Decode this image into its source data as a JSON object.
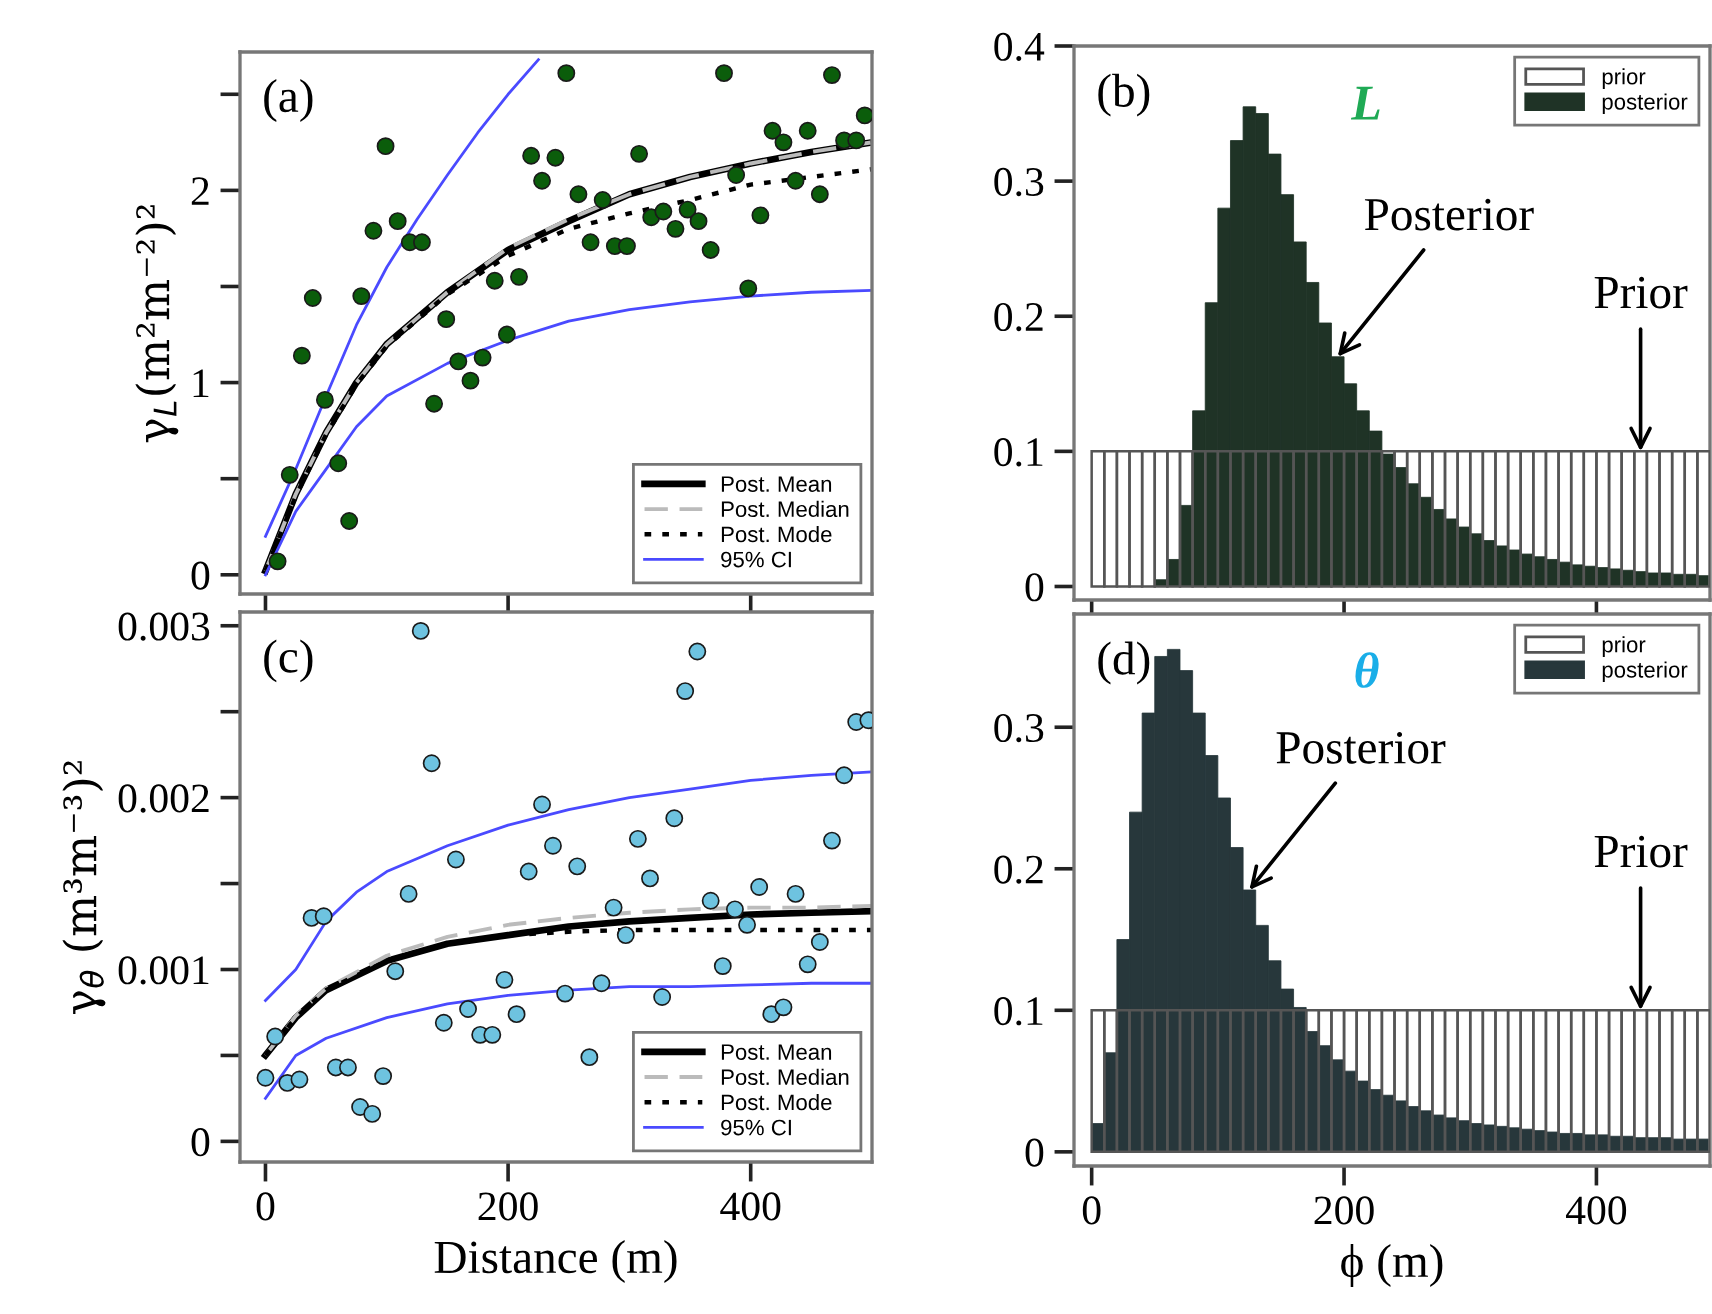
{
  "chart_data": [
    {
      "type": "line",
      "ylabel": "γ$_{L}$(m²m⁻²)²",
      "xlim": [
        -21,
        500
      ],
      "ylim": [
        -0.1,
        2.72
      ],
      "xticks": [
        0,
        200,
        400
      ],
      "yticks": [
        0,
        {
          "value": 0.5,
          "label": null
        },
        1,
        {
          "value": 1.5,
          "label": null
        },
        2,
        {
          "value": 2.5,
          "label": null
        }
      ],
      "tick_labels": "y",
      "legend": "bottom right",
      "annotations": [
        "(a)"
      ],
      "series": [
        {
          "type": "scatter",
          "marker": "circle",
          "color": "#0b5d0b",
          "x": [
            10,
            20,
            30,
            39,
            49,
            60,
            69,
            79,
            89,
            99,
            109,
            119,
            129,
            139,
            149,
            159,
            169,
            179,
            189,
            199,
            209,
            219,
            228,
            239,
            248,
            258,
            268,
            278,
            288,
            298,
            308,
            318,
            328,
            338,
            348,
            357,
            367,
            378,
            388,
            398,
            408,
            418,
            427,
            437,
            447,
            457,
            467,
            477,
            487,
            494
          ],
          "values": [
            0.07,
            0.52,
            1.14,
            1.44,
            0.91,
            0.58,
            0.28,
            1.45,
            1.79,
            2.23,
            1.84,
            1.73,
            1.73,
            0.89,
            1.33,
            1.11,
            1.01,
            1.13,
            1.53,
            1.25,
            1.55,
            2.18,
            2.05,
            2.17,
            2.61,
            1.98,
            1.73,
            1.95,
            1.71,
            1.71,
            2.19,
            1.86,
            1.89,
            1.8,
            1.9,
            1.84,
            1.69,
            2.61,
            2.08,
            1.49,
            1.87,
            2.31,
            2.25,
            2.05,
            2.31,
            1.98,
            2.6,
            2.26,
            2.26,
            2.39
          ]
        },
        {
          "type": "line",
          "name": "Post. Mean",
          "color": "#000000",
          "line_style": "solid",
          "x": [
            0,
            25,
            50,
            75,
            100,
            150,
            200,
            250,
            300,
            350,
            400,
            450,
            500
          ],
          "values": [
            0.02,
            0.42,
            0.74,
            1.0,
            1.2,
            1.47,
            1.69,
            1.84,
            1.98,
            2.07,
            2.14,
            2.2,
            2.25
          ]
        },
        {
          "type": "line",
          "name": "Post. Median",
          "color": "#bbbbbb",
          "line_style": "dashed",
          "x": [
            0,
            25,
            50,
            75,
            100,
            150,
            200,
            250,
            300,
            350,
            400,
            450,
            500
          ],
          "values": [
            0.02,
            0.42,
            0.74,
            1.0,
            1.2,
            1.47,
            1.7,
            1.85,
            1.98,
            2.07,
            2.14,
            2.2,
            2.25
          ]
        },
        {
          "type": "line",
          "name": "Post. Mode",
          "color": "#000000",
          "line_style": "dotted",
          "x": [
            0,
            25,
            50,
            75,
            100,
            150,
            200,
            250,
            300,
            350,
            400,
            450,
            500
          ],
          "values": [
            0.02,
            0.41,
            0.73,
            0.99,
            1.19,
            1.46,
            1.66,
            1.8,
            1.88,
            1.95,
            2.03,
            2.07,
            2.11
          ]
        },
        {
          "type": "line",
          "name": "95% CI",
          "color": "#4a4aff",
          "line_style": "solid",
          "x": [
            0,
            25,
            50,
            75,
            100,
            125,
            150,
            175,
            200,
            225
          ],
          "values": [
            0.2,
            0.55,
            0.93,
            1.3,
            1.6,
            1.85,
            2.08,
            2.3,
            2.5,
            2.68
          ]
        },
        {
          "type": "line",
          "color": "#4a4aff",
          "line_style": "solid",
          "x": [
            0,
            25,
            50,
            75,
            100,
            150,
            200,
            250,
            300,
            350,
            400,
            450,
            500
          ],
          "values": [
            0.0,
            0.33,
            0.55,
            0.77,
            0.93,
            1.1,
            1.22,
            1.32,
            1.38,
            1.42,
            1.45,
            1.47,
            1.48
          ]
        }
      ]
    },
    {
      "type": "histogram",
      "xlim": [
        -14,
        490
      ],
      "ylim": [
        -0.01,
        0.4
      ],
      "xticks": [
        0,
        200,
        400
      ],
      "yticks": [
        0,
        0.1,
        0.2,
        0.3,
        0.4
      ],
      "tick_labels": "y",
      "legend": "top right",
      "annotations": [
        "(b)",
        "L",
        {
          "text": "Posterior",
          "x": 195,
          "y": 0.17
        },
        {
          "text": "Prior",
          "x": 435,
          "y": 0.1
        }
      ],
      "bins": [
        0,
        10,
        20,
        30,
        40,
        50,
        60,
        70,
        80,
        90,
        100,
        110,
        120,
        130,
        140,
        150,
        160,
        170,
        180,
        190,
        200,
        210,
        220,
        230,
        240,
        250,
        260,
        270,
        280,
        290,
        300,
        310,
        320,
        330,
        340,
        350,
        360,
        370,
        380,
        390,
        400,
        410,
        420,
        430,
        440,
        450,
        460,
        470,
        480,
        490
      ],
      "series": [
        {
          "name": "prior",
          "color": "#555555",
          "values": [
            0.1,
            0.1,
            0.1,
            0.1,
            0.1,
            0.1,
            0.1,
            0.1,
            0.1,
            0.1,
            0.1,
            0.1,
            0.1,
            0.1,
            0.1,
            0.1,
            0.1,
            0.1,
            0.1,
            0.1,
            0.1,
            0.1,
            0.1,
            0.1,
            0.1,
            0.1,
            0.1,
            0.1,
            0.1,
            0.1,
            0.1,
            0.1,
            0.1,
            0.1,
            0.1,
            0.1,
            0.1,
            0.1,
            0.1,
            0.1,
            0.1,
            0.1,
            0.1,
            0.1,
            0.1,
            0.1,
            0.1,
            0.1,
            0.1
          ]
        },
        {
          "name": "posterior",
          "color": "#1f3326",
          "values": [
            0,
            0,
            0,
            0,
            0,
            0.005,
            0.02,
            0.06,
            0.13,
            0.21,
            0.28,
            0.33,
            0.355,
            0.35,
            0.32,
            0.29,
            0.255,
            0.225,
            0.195,
            0.17,
            0.15,
            0.13,
            0.115,
            0.098,
            0.088,
            0.076,
            0.066,
            0.057,
            0.05,
            0.044,
            0.039,
            0.034,
            0.03,
            0.027,
            0.024,
            0.022,
            0.02,
            0.018,
            0.016,
            0.015,
            0.014,
            0.013,
            0.012,
            0.011,
            0.01,
            0.01,
            0.009,
            0.009,
            0.008
          ]
        }
      ]
    },
    {
      "type": "line",
      "ylabel": "γ$_{θ}$ (m³m⁻³)²",
      "xlabel": "Distance (m)",
      "xlim": [
        -21,
        500
      ],
      "ylim": [
        -0.00012,
        0.00308
      ],
      "xticks": [
        0,
        200,
        400
      ],
      "yticks": [
        0,
        {
          "value": 0.0005,
          "label": null
        },
        0.001,
        {
          "value": 0.0015,
          "label": null
        },
        0.002,
        {
          "value": 0.0025,
          "label": null
        },
        0.003
      ],
      "legend": "bottom right",
      "annotations": [
        "(c)"
      ],
      "series": [
        {
          "type": "scatter",
          "marker": "circle",
          "color": "#6ec3e0",
          "x": [
            0,
            8,
            18,
            28,
            38,
            48,
            58,
            68,
            78,
            88,
            97,
            107,
            118,
            128,
            137,
            147,
            157,
            167,
            177,
            187,
            197,
            207,
            217,
            228,
            237,
            247,
            257,
            267,
            277,
            287,
            297,
            307,
            317,
            327,
            337,
            346,
            356,
            367,
            377,
            387,
            397,
            407,
            417,
            427,
            437,
            447,
            457,
            467,
            477,
            487,
            497
          ],
          "values": [
            0.00037,
            0.00061,
            0.00034,
            0.00036,
            0.0013,
            0.00131,
            0.00043,
            0.00043,
            0.0002,
            0.00016,
            0.00038,
            0.00099,
            0.00144,
            0.00297,
            0.0022,
            0.00069,
            0.00164,
            0.00077,
            0.00062,
            0.00062,
            0.00094,
            0.00074,
            0.00157,
            0.00196,
            0.00172,
            0.00086,
            0.0016,
            0.00049,
            0.00092,
            0.00136,
            0.0012,
            0.00176,
            0.00153,
            0.00084,
            0.00188,
            0.00262,
            0.00285,
            0.0014,
            0.00102,
            0.00135,
            0.00126,
            0.00148,
            0.00074,
            0.00078,
            0.00144,
            0.00103,
            0.00116,
            0.00175,
            0.00213,
            0.00244,
            0.00245
          ]
        },
        {
          "type": "line",
          "name": "Post. Mean",
          "color": "#000000",
          "line_style": "solid",
          "x": [
            0,
            25,
            50,
            100,
            150,
            200,
            250,
            300,
            350,
            400,
            450,
            500
          ],
          "values": [
            0.0005,
            0.00072,
            0.00088,
            0.00105,
            0.00115,
            0.0012,
            0.00125,
            0.00128,
            0.0013,
            0.00132,
            0.00133,
            0.00134
          ]
        },
        {
          "type": "line",
          "name": "Post. Median",
          "color": "#bbbbbb",
          "line_style": "dashed",
          "x": [
            0,
            25,
            50,
            100,
            150,
            200,
            250,
            300,
            350,
            400,
            450,
            500
          ],
          "values": [
            0.0005,
            0.00073,
            0.00089,
            0.00108,
            0.00119,
            0.00126,
            0.0013,
            0.00133,
            0.00135,
            0.00136,
            0.00136,
            0.00137
          ]
        },
        {
          "type": "line",
          "name": "Post. Mode",
          "color": "#000000",
          "line_style": "dotted",
          "x": [
            0,
            25,
            50,
            100,
            150,
            200,
            250,
            300,
            350,
            400,
            450,
            500
          ],
          "values": [
            0.0005,
            0.00072,
            0.00088,
            0.00105,
            0.00115,
            0.0012,
            0.00122,
            0.00123,
            0.00123,
            0.00123,
            0.00123,
            0.00123
          ]
        },
        {
          "type": "line",
          "name": "95% CI",
          "color": "#4a4aff",
          "line_style": "solid",
          "x": [
            0,
            25,
            50,
            75,
            100,
            150,
            200,
            250,
            300,
            350,
            400,
            450,
            500
          ],
          "values": [
            0.00082,
            0.001,
            0.00128,
            0.00145,
            0.00157,
            0.00172,
            0.00184,
            0.00193,
            0.002,
            0.00205,
            0.0021,
            0.00213,
            0.00215
          ]
        },
        {
          "type": "line",
          "color": "#4a4aff",
          "line_style": "solid",
          "x": [
            0,
            25,
            50,
            100,
            150,
            200,
            250,
            300,
            350,
            400,
            450,
            500
          ],
          "values": [
            0.00025,
            0.0005,
            0.0006,
            0.00072,
            0.0008,
            0.00085,
            0.00088,
            0.0009,
            0.0009,
            0.00091,
            0.00092,
            0.00092
          ]
        }
      ]
    },
    {
      "type": "histogram",
      "xlabel": "ϕ (m)",
      "xlim": [
        -14,
        490
      ],
      "ylim": [
        -0.01,
        0.38
      ],
      "xticks": [
        0,
        200,
        400
      ],
      "yticks": [
        0,
        0.1,
        0.2,
        0.3
      ],
      "legend": "top right",
      "annotations": [
        "(d)",
        "θ",
        {
          "text": "Posterior",
          "x": 125,
          "y": 0.185
        },
        {
          "text": "Prior",
          "x": 435,
          "y": 0.1
        }
      ],
      "bins": [
        0,
        10,
        20,
        30,
        40,
        50,
        60,
        70,
        80,
        90,
        100,
        110,
        120,
        130,
        140,
        150,
        160,
        170,
        180,
        190,
        200,
        210,
        220,
        230,
        240,
        250,
        260,
        270,
        280,
        290,
        300,
        310,
        320,
        330,
        340,
        350,
        360,
        370,
        380,
        390,
        400,
        410,
        420,
        430,
        440,
        450,
        460,
        470,
        480,
        490
      ],
      "series": [
        {
          "name": "prior",
          "color": "#555555",
          "values": [
            0.1,
            0.1,
            0.1,
            0.1,
            0.1,
            0.1,
            0.1,
            0.1,
            0.1,
            0.1,
            0.1,
            0.1,
            0.1,
            0.1,
            0.1,
            0.1,
            0.1,
            0.1,
            0.1,
            0.1,
            0.1,
            0.1,
            0.1,
            0.1,
            0.1,
            0.1,
            0.1,
            0.1,
            0.1,
            0.1,
            0.1,
            0.1,
            0.1,
            0.1,
            0.1,
            0.1,
            0.1,
            0.1,
            0.1,
            0.1,
            0.1,
            0.1,
            0.1,
            0.1,
            0.1,
            0.1,
            0.1,
            0.1,
            0.1
          ]
        },
        {
          "name": "posterior",
          "color": "#27373b",
          "values": [
            0.02,
            0.07,
            0.15,
            0.24,
            0.31,
            0.35,
            0.355,
            0.34,
            0.31,
            0.28,
            0.25,
            0.215,
            0.185,
            0.16,
            0.135,
            0.115,
            0.102,
            0.085,
            0.075,
            0.065,
            0.057,
            0.05,
            0.044,
            0.04,
            0.036,
            0.032,
            0.029,
            0.026,
            0.024,
            0.022,
            0.02,
            0.019,
            0.018,
            0.017,
            0.016,
            0.015,
            0.014,
            0.013,
            0.013,
            0.012,
            0.012,
            0.011,
            0.011,
            0.01,
            0.01,
            0.01,
            0.009,
            0.009,
            0.009
          ]
        }
      ]
    }
  ]
}
